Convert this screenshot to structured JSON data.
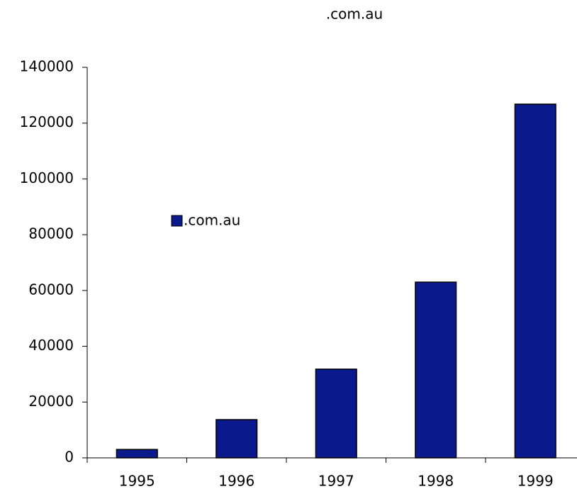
{
  "chart_data": {
    "type": "bar",
    "title": ".com.au",
    "categories": [
      "1995",
      "1996",
      "1997",
      "1998",
      "1999"
    ],
    "series": [
      {
        "name": ".com.au",
        "color": "#0a1a8c",
        "values": [
          3000,
          13700,
          31800,
          63000,
          126800
        ]
      }
    ],
    "ylim": [
      0,
      140000
    ],
    "yticks": [
      0,
      20000,
      40000,
      60000,
      80000,
      100000,
      120000,
      140000
    ],
    "grid": false
  }
}
